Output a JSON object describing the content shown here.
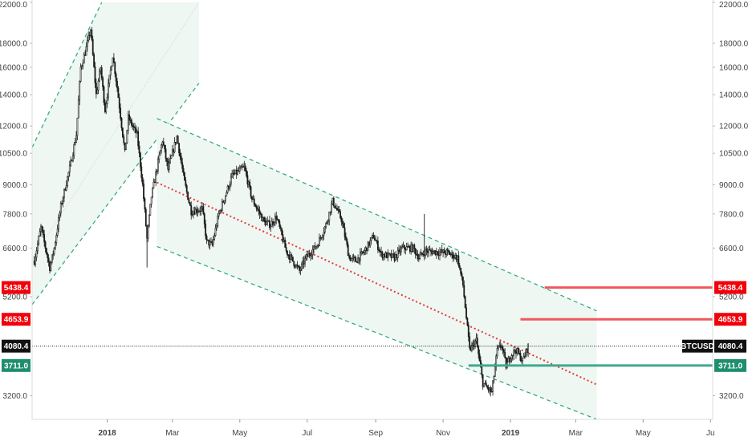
{
  "chart_data": {
    "type": "candlestick",
    "symbol": "BTCUSD",
    "log_scale": true,
    "ylim": [
      2850,
      22000
    ],
    "y_ticks": [
      {
        "value": 3200,
        "label": "3200.0"
      },
      {
        "value": 5200,
        "label": "5200.0"
      },
      {
        "value": 6600,
        "label": "6600.0"
      },
      {
        "value": 7800,
        "label": "7800.0"
      },
      {
        "value": 9000,
        "label": "9000.0"
      },
      {
        "value": 10500,
        "label": "10500.0"
      },
      {
        "value": 12000,
        "label": "12000.0"
      },
      {
        "value": 14000,
        "label": "14000.0"
      },
      {
        "value": 16000,
        "label": "16000.0"
      },
      {
        "value": 18000,
        "label": "18000.0"
      },
      {
        "value": 22000,
        "label": "22000.0"
      }
    ],
    "x_range": [
      "2017-10-25",
      "2019-07-03"
    ],
    "x_ticks": [
      {
        "date": "2018-01-01",
        "label": "2018",
        "bold": true
      },
      {
        "date": "2018-03-01",
        "label": "Mar",
        "bold": false
      },
      {
        "date": "2018-05-01",
        "label": "May",
        "bold": false
      },
      {
        "date": "2018-07-01",
        "label": "Jul",
        "bold": false
      },
      {
        "date": "2018-09-01",
        "label": "Sep",
        "bold": false
      },
      {
        "date": "2018-11-01",
        "label": "Nov",
        "bold": false
      },
      {
        "date": "2019-01-01",
        "label": "2019",
        "bold": true
      },
      {
        "date": "2019-03-01",
        "label": "Mar",
        "bold": false
      },
      {
        "date": "2019-05-01",
        "label": "May",
        "bold": false
      },
      {
        "date": "2019-07-01",
        "label": "Ju",
        "bold": false
      }
    ],
    "price_path": [
      [
        "2017-10-27",
        6200
      ],
      [
        "2017-11-02",
        7300
      ],
      [
        "2017-11-10",
        6000
      ],
      [
        "2017-11-14",
        6600
      ],
      [
        "2017-11-20",
        8100
      ],
      [
        "2017-11-29",
        10000
      ],
      [
        "2017-12-04",
        11500
      ],
      [
        "2017-12-08",
        16000
      ],
      [
        "2017-12-12",
        17200
      ],
      [
        "2017-12-17",
        19300
      ],
      [
        "2017-12-22",
        14000
      ],
      [
        "2017-12-26",
        16000
      ],
      [
        "2017-12-30",
        13000
      ],
      [
        "2018-01-06",
        17000
      ],
      [
        "2018-01-10",
        14500
      ],
      [
        "2018-01-17",
        10500
      ],
      [
        "2018-01-20",
        12500
      ],
      [
        "2018-01-28",
        11500
      ],
      [
        "2018-02-02",
        9000
      ],
      [
        "2018-02-06",
        6900
      ],
      [
        "2018-02-10",
        8500
      ],
      [
        "2018-02-20",
        11200
      ],
      [
        "2018-02-25",
        9700
      ],
      [
        "2018-03-05",
        11400
      ],
      [
        "2018-03-12",
        9100
      ],
      [
        "2018-03-18",
        7900
      ],
      [
        "2018-03-28",
        8000
      ],
      [
        "2018-04-01",
        6800
      ],
      [
        "2018-04-06",
        6700
      ],
      [
        "2018-04-12",
        7800
      ],
      [
        "2018-04-24",
        9400
      ],
      [
        "2018-05-05",
        9800
      ],
      [
        "2018-05-12",
        8400
      ],
      [
        "2018-05-23",
        7500
      ],
      [
        "2018-05-29",
        7400
      ],
      [
        "2018-06-03",
        7700
      ],
      [
        "2018-06-12",
        6500
      ],
      [
        "2018-06-24",
        5900
      ],
      [
        "2018-06-30",
        6300
      ],
      [
        "2018-07-10",
        6700
      ],
      [
        "2018-07-18",
        7400
      ],
      [
        "2018-07-24",
        8300
      ],
      [
        "2018-08-01",
        7600
      ],
      [
        "2018-08-08",
        6300
      ],
      [
        "2018-08-14",
        6200
      ],
      [
        "2018-08-22",
        6500
      ],
      [
        "2018-08-30",
        7000
      ],
      [
        "2018-09-06",
        6400
      ],
      [
        "2018-09-18",
        6300
      ],
      [
        "2018-09-25",
        6600
      ],
      [
        "2018-10-05",
        6600
      ],
      [
        "2018-10-10",
        6300
      ],
      [
        "2018-10-16",
        6500
      ],
      [
        "2018-11-05",
        6450
      ],
      [
        "2018-11-14",
        6300
      ],
      [
        "2018-11-19",
        5500
      ],
      [
        "2018-11-25",
        4000
      ],
      [
        "2018-12-01",
        4200
      ],
      [
        "2018-12-07",
        3400
      ],
      [
        "2018-12-15",
        3250
      ],
      [
        "2018-12-20",
        4000
      ],
      [
        "2018-12-24",
        4100
      ],
      [
        "2018-12-28",
        3700
      ],
      [
        "2019-01-01",
        3900
      ],
      [
        "2019-01-06",
        4000
      ],
      [
        "2019-01-12",
        3800
      ],
      [
        "2019-01-17",
        4080.4
      ]
    ],
    "spikes": [
      {
        "date": "2018-10-15",
        "high": 7800
      },
      {
        "date": "2018-02-06",
        "low": 6000
      }
    ],
    "channels": [
      {
        "name": "rising-channel",
        "mid_start": [
          "2017-10-25",
          6250
        ],
        "mid_end": [
          "2018-03-25",
          22000
        ],
        "upper_start": [
          "2017-10-25",
          10800
        ],
        "upper_end": [
          "2017-12-27",
          22000
        ],
        "lower_start": [
          "2017-10-25",
          5000
        ],
        "lower_end": [
          "2018-03-25",
          14800
        ],
        "fill_end_date": "2018-03-25"
      },
      {
        "name": "falling-channel",
        "mid_start": [
          "2018-02-15",
          9100
        ],
        "mid_end": [
          "2019-03-20",
          3380
        ],
        "upper_start": [
          "2018-02-15",
          12450
        ],
        "upper_end": [
          "2019-03-20",
          4850
        ],
        "lower_start": [
          "2018-02-15",
          6650
        ],
        "lower_end": [
          "2019-03-20",
          2850
        ],
        "fill_end_date": "2019-03-20"
      }
    ],
    "levels": [
      {
        "name": "resistance-1",
        "value": 5438.4,
        "label": "5438.4",
        "start_date": "2019-02-01",
        "color": "#f0585d"
      },
      {
        "name": "resistance-2",
        "value": 4653.9,
        "label": "4653.9",
        "start_date": "2019-01-10",
        "color": "#f0585d"
      },
      {
        "name": "support",
        "value": 3711.0,
        "label": "3711.0",
        "start_date": "2018-11-24",
        "color": "#41a88c"
      }
    ],
    "current_price": {
      "value": 4080.4,
      "label": "4080.4",
      "symbol": "BTCUSD"
    },
    "colors": {
      "candle": "#1b1b1b",
      "channel_line": "#2aa67c",
      "channel_fill": "#eef7f2",
      "midline": "#c8c8c8",
      "trend_dotted": "#e8393f",
      "label_red": "#f2000a",
      "label_green": "#1e8e6e",
      "label_black": "#111111",
      "axis_text": "#444444",
      "axis_line": "#dddddd"
    }
  }
}
